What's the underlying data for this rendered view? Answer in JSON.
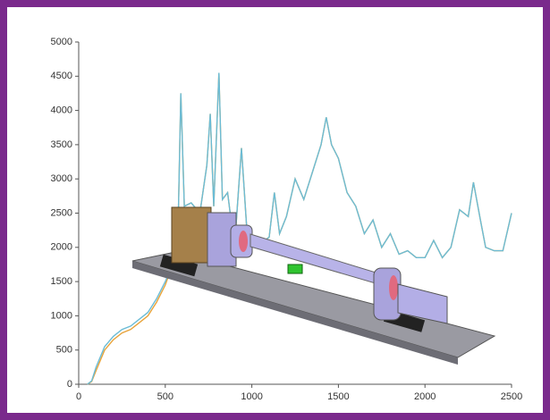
{
  "chart_data": {
    "type": "line",
    "x": [
      50,
      75,
      100,
      150,
      200,
      250,
      300,
      350,
      400,
      450,
      500,
      550,
      575,
      590,
      610,
      650,
      700,
      740,
      760,
      780,
      810,
      830,
      860,
      900,
      940,
      970,
      1000,
      1050,
      1100,
      1130,
      1160,
      1200,
      1250,
      1300,
      1350,
      1400,
      1430,
      1460,
      1500,
      1550,
      1600,
      1650,
      1700,
      1750,
      1800,
      1850,
      1900,
      1950,
      2000,
      2050,
      2100,
      2150,
      2200,
      2250,
      2280,
      2320,
      2350,
      2400,
      2450,
      2500
    ],
    "series": [
      {
        "color": "#e8a33a",
        "values": [
          0,
          40,
          200,
          500,
          650,
          750,
          800,
          900,
          1000,
          1200,
          1450,
          1800,
          2400,
          4250,
          2600,
          2650,
          2500,
          3200,
          3950,
          2600,
          4550,
          2700,
          2800,
          2000,
          3450,
          2300,
          2100,
          2050,
          2150,
          2800,
          2200,
          2450,
          3000,
          2700,
          3100,
          3500,
          3900,
          3500,
          3300,
          2800,
          2600,
          2200,
          2400,
          2000,
          2200,
          1900,
          1950,
          1850,
          1850,
          2100,
          1850,
          2000,
          2550,
          2450,
          2950,
          2400,
          2000,
          1950,
          1950,
          2500
        ]
      },
      {
        "color": "#6bbcd6",
        "values": [
          0,
          50,
          250,
          550,
          700,
          800,
          850,
          950,
          1050,
          1250,
          1500,
          1800,
          2400,
          4250,
          2600,
          2650,
          2500,
          3200,
          3950,
          2600,
          4550,
          2700,
          2800,
          2000,
          3450,
          2300,
          2100,
          2050,
          2150,
          2800,
          2200,
          2450,
          3000,
          2700,
          3100,
          3500,
          3900,
          3500,
          3300,
          2800,
          2600,
          2200,
          2400,
          2000,
          2200,
          1900,
          1950,
          1850,
          1850,
          2100,
          1850,
          2000,
          2550,
          2450,
          2950,
          2400,
          2000,
          1950,
          1950,
          2500
        ]
      }
    ],
    "xlim": [
      0,
      2500
    ],
    "xticks": [
      0,
      500,
      1000,
      1500,
      2000,
      2500
    ],
    "ylim": [
      0,
      5000
    ],
    "yticks": [
      0,
      500,
      1000,
      1500,
      2000,
      2500,
      3000,
      3500,
      4000,
      4500,
      5000
    ]
  }
}
